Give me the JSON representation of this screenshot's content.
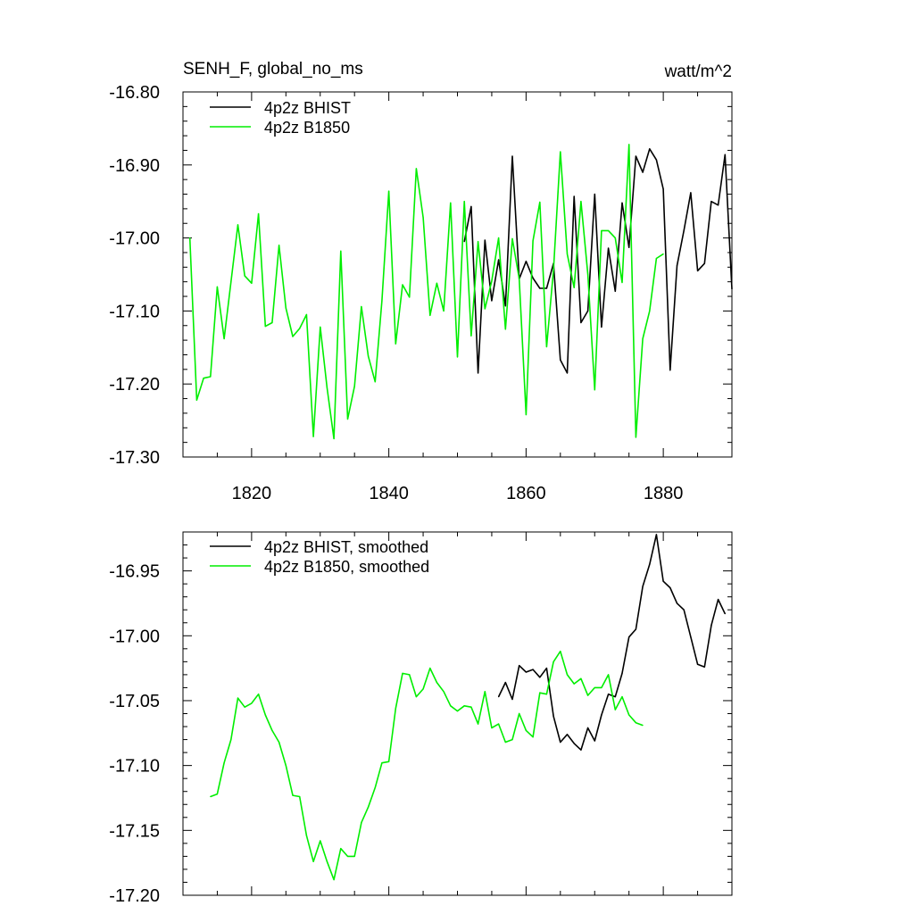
{
  "chart_data": [
    {
      "type": "line",
      "title": "SENH_F, global_no_ms",
      "units": "watt/m^2",
      "xlim": [
        1810,
        1890
      ],
      "ylim": [
        -17.3,
        -16.8
      ],
      "ytick_labels": [
        "-16.80",
        "-16.90",
        "-17.00",
        "-17.10",
        "-17.20",
        "-17.30"
      ],
      "xtick_labels": [
        "1820",
        "1840",
        "1860",
        "1880"
      ],
      "legend_position": "top-left",
      "series": [
        {
          "name": "4p2z BHIST",
          "color": "#000000",
          "x": [
            1851,
            1852,
            1853,
            1854,
            1855,
            1856,
            1857,
            1858,
            1859,
            1860,
            1861,
            1862,
            1863,
            1864,
            1865,
            1866,
            1867,
            1868,
            1869,
            1870,
            1871,
            1872,
            1873,
            1874,
            1875,
            1876,
            1877,
            1878,
            1879,
            1880,
            1881,
            1882,
            1883,
            1884,
            1885,
            1886,
            1887,
            1888,
            1889,
            1890
          ],
          "y": [
            -17.005,
            -16.957,
            -17.185,
            -17.003,
            -17.086,
            -17.03,
            -17.093,
            -16.888,
            -17.056,
            -17.032,
            -17.055,
            -17.069,
            -17.069,
            -17.035,
            -17.167,
            -17.185,
            -16.943,
            -17.116,
            -17.1,
            -16.94,
            -17.122,
            -17.014,
            -17.073,
            -16.952,
            -17.013,
            -16.888,
            -16.91,
            -16.878,
            -16.893,
            -16.933,
            -17.181,
            -17.038,
            -16.99,
            -16.938,
            -17.045,
            -17.035,
            -16.95,
            -16.955,
            -16.886,
            -17.07
          ]
        },
        {
          "name": "4p2z B1850",
          "color": "#00ee00",
          "x": [
            1811,
            1812,
            1813,
            1814,
            1815,
            1816,
            1817,
            1818,
            1819,
            1820,
            1821,
            1822,
            1823,
            1824,
            1825,
            1826,
            1827,
            1828,
            1829,
            1830,
            1831,
            1832,
            1833,
            1834,
            1835,
            1836,
            1837,
            1838,
            1839,
            1840,
            1841,
            1842,
            1843,
            1844,
            1845,
            1846,
            1847,
            1848,
            1849,
            1850,
            1851,
            1852,
            1853,
            1854,
            1855,
            1856,
            1857,
            1858,
            1859,
            1860,
            1861,
            1862,
            1863,
            1864,
            1865,
            1866,
            1867,
            1868,
            1869,
            1870,
            1871,
            1872,
            1873,
            1874,
            1875,
            1876,
            1877,
            1878,
            1879,
            1880
          ],
          "y": [
            -17.0,
            -17.222,
            -17.192,
            -17.19,
            -17.067,
            -17.138,
            -17.06,
            -16.982,
            -17.052,
            -17.062,
            -16.967,
            -17.121,
            -17.116,
            -17.01,
            -17.096,
            -17.135,
            -17.124,
            -17.105,
            -17.272,
            -17.122,
            -17.205,
            -17.275,
            -17.018,
            -17.248,
            -17.203,
            -17.094,
            -17.162,
            -17.197,
            -17.086,
            -16.936,
            -17.145,
            -17.064,
            -17.081,
            -16.905,
            -16.972,
            -17.106,
            -17.062,
            -17.1,
            -16.952,
            -17.163,
            -16.95,
            -17.134,
            -17.005,
            -17.097,
            -17.059,
            -17.0,
            -17.125,
            -17.001,
            -17.056,
            -17.242,
            -17.004,
            -16.951,
            -17.149,
            -17.044,
            -16.882,
            -17.022,
            -17.068,
            -16.95,
            -17.05,
            -17.208,
            -16.99,
            -16.99,
            -17.0,
            -17.061,
            -16.872,
            -17.273,
            -17.138,
            -17.1,
            -17.028,
            -17.022
          ]
        }
      ]
    },
    {
      "type": "line",
      "xlim": [
        1810,
        1890
      ],
      "ylim": [
        -17.2,
        -16.92
      ],
      "ytick_labels": [
        "-16.95",
        "-17.00",
        "-17.05",
        "-17.10",
        "-17.15",
        "-17.20"
      ],
      "legend_position": "top-left",
      "series": [
        {
          "name": "4p2z BHIST, smoothed",
          "color": "#000000",
          "x": [
            1856,
            1857,
            1858,
            1859,
            1860,
            1861,
            1862,
            1863,
            1864,
            1865,
            1866,
            1867,
            1868,
            1869,
            1870,
            1871,
            1872,
            1873,
            1874,
            1875,
            1876,
            1877,
            1878,
            1879,
            1880,
            1881,
            1882,
            1883,
            1884,
            1885,
            1886,
            1887,
            1888,
            1889
          ],
          "y": [
            -17.047,
            -17.036,
            -17.049,
            -17.023,
            -17.028,
            -17.026,
            -17.032,
            -17.025,
            -17.062,
            -17.082,
            -17.076,
            -17.083,
            -17.088,
            -17.071,
            -17.081,
            -17.061,
            -17.045,
            -17.047,
            -17.029,
            -17.001,
            -16.995,
            -16.962,
            -16.945,
            -16.922,
            -16.958,
            -16.963,
            -16.975,
            -16.98,
            -17.001,
            -17.022,
            -17.024,
            -16.992,
            -16.972,
            -16.983
          ]
        },
        {
          "name": "4p2z B1850, smoothed",
          "color": "#00ee00",
          "x": [
            1814,
            1815,
            1816,
            1817,
            1818,
            1819,
            1820,
            1821,
            1822,
            1823,
            1824,
            1825,
            1826,
            1827,
            1828,
            1829,
            1830,
            1831,
            1832,
            1833,
            1834,
            1835,
            1836,
            1837,
            1838,
            1839,
            1840,
            1841,
            1842,
            1843,
            1844,
            1845,
            1846,
            1847,
            1848,
            1849,
            1850,
            1851,
            1852,
            1853,
            1854,
            1855,
            1856,
            1857,
            1858,
            1859,
            1860,
            1861,
            1862,
            1863,
            1864,
            1865,
            1866,
            1867,
            1868,
            1869,
            1870,
            1871,
            1872,
            1873,
            1874,
            1875,
            1876,
            1877
          ],
          "y": [
            -17.124,
            -17.122,
            -17.098,
            -17.08,
            -17.048,
            -17.055,
            -17.052,
            -17.045,
            -17.061,
            -17.073,
            -17.082,
            -17.1,
            -17.123,
            -17.124,
            -17.154,
            -17.174,
            -17.158,
            -17.174,
            -17.188,
            -17.164,
            -17.17,
            -17.17,
            -17.144,
            -17.132,
            -17.117,
            -17.098,
            -17.097,
            -17.056,
            -17.029,
            -17.03,
            -17.047,
            -17.041,
            -17.025,
            -17.036,
            -17.043,
            -17.054,
            -17.058,
            -17.054,
            -17.055,
            -17.068,
            -17.043,
            -17.071,
            -17.068,
            -17.082,
            -17.08,
            -17.06,
            -17.073,
            -17.078,
            -17.044,
            -17.045,
            -17.02,
            -17.012,
            -17.03,
            -17.037,
            -17.033,
            -17.046,
            -17.04,
            -17.04,
            -17.03,
            -17.057,
            -17.047,
            -17.061,
            -17.067,
            -17.069
          ]
        }
      ]
    }
  ]
}
